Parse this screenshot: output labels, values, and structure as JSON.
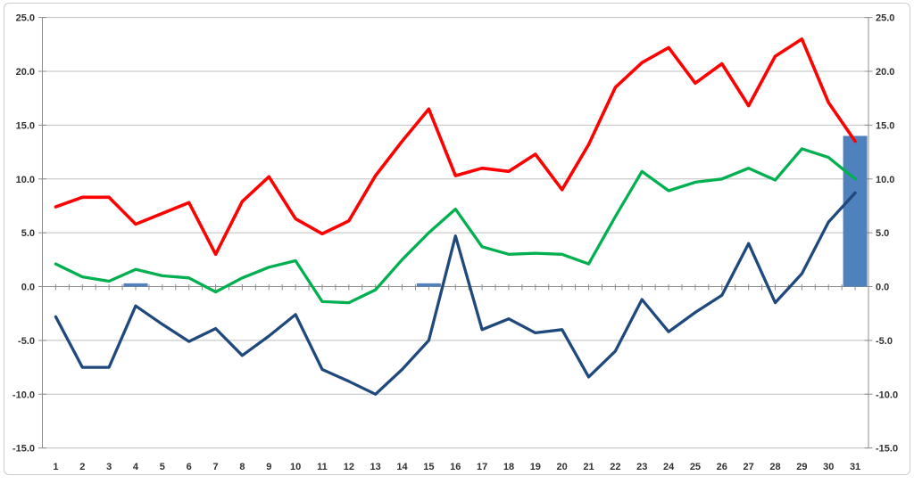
{
  "chart_data": {
    "type": "line+bar",
    "categories": [
      1,
      2,
      3,
      4,
      5,
      6,
      7,
      8,
      9,
      10,
      11,
      12,
      13,
      14,
      15,
      16,
      17,
      18,
      19,
      20,
      21,
      22,
      23,
      24,
      25,
      26,
      27,
      28,
      29,
      30,
      31
    ],
    "series": [
      {
        "name": "red-line",
        "type": "line",
        "color": "#FF0000",
        "values": [
          7.4,
          8.3,
          8.3,
          5.8,
          6.8,
          7.8,
          3.0,
          7.9,
          10.2,
          6.3,
          4.9,
          6.1,
          10.3,
          13.5,
          16.5,
          10.3,
          11.0,
          10.7,
          12.3,
          9.0,
          13.2,
          18.5,
          20.8,
          22.2,
          18.9,
          20.7,
          16.8,
          21.4,
          23.0,
          17.1,
          13.5
        ]
      },
      {
        "name": "green-line",
        "type": "line",
        "color": "#00B050",
        "values": [
          2.1,
          0.9,
          0.5,
          1.6,
          1.0,
          0.8,
          -0.5,
          0.8,
          1.8,
          2.4,
          -1.4,
          -1.5,
          -0.3,
          2.5,
          5.0,
          7.2,
          3.7,
          3.0,
          3.1,
          3.0,
          2.1,
          6.5,
          10.7,
          8.9,
          9.7,
          10.0,
          11.0,
          9.9,
          12.8,
          12.0,
          10.0
        ]
      },
      {
        "name": "navy-line",
        "type": "line",
        "color": "#1F497D",
        "values": [
          -2.8,
          -7.5,
          -7.5,
          -1.8,
          -3.5,
          -5.1,
          -3.9,
          -6.4,
          -4.6,
          -2.6,
          -7.7,
          -8.8,
          -10.0,
          -7.7,
          -5.0,
          4.7,
          -4.0,
          -3.0,
          -4.3,
          -4.0,
          -8.4,
          -6.0,
          -1.2,
          -4.2,
          -2.4,
          -0.8,
          4.0,
          -1.5,
          1.2,
          6.0,
          8.7
        ]
      },
      {
        "name": "blue-bars",
        "type": "bar",
        "color": "#4F81BD",
        "values": [
          0,
          0,
          0,
          0.3,
          0,
          0,
          0,
          0,
          0,
          0,
          0,
          0,
          0,
          0,
          0.3,
          0,
          0,
          0,
          0,
          0,
          0,
          0,
          0,
          0,
          0,
          0,
          0,
          0,
          0,
          0,
          14.0
        ]
      }
    ],
    "x_axis": {
      "tick_labels": [
        "1",
        "2",
        "3",
        "4",
        "5",
        "6",
        "7",
        "8",
        "9",
        "10",
        "11",
        "12",
        "13",
        "14",
        "15",
        "16",
        "17",
        "18",
        "19",
        "20",
        "21",
        "22",
        "23",
        "24",
        "25",
        "26",
        "27",
        "28",
        "29",
        "30",
        "31"
      ]
    },
    "y_axis": {
      "min": -15,
      "max": 25,
      "step": 5,
      "left_tick_labels": [
        "25.0",
        "20.0",
        "15.0",
        "10.0",
        "5.0",
        "0.0",
        "-5.0",
        "-10.0",
        "-15.0"
      ],
      "right_tick_labels": [
        "25.0",
        "20.0",
        "15.0",
        "10.0",
        "5.0",
        "0.0",
        "-5.0",
        "-10.0",
        "-15.0"
      ]
    },
    "grid": true,
    "legend": false
  },
  "style": {
    "background": "#FFFFFF",
    "frame_border_color": "#CDCDCD",
    "grid_color": "#BFBFBF",
    "axis_color": "#8C8C8C",
    "label_color": "#303030"
  }
}
